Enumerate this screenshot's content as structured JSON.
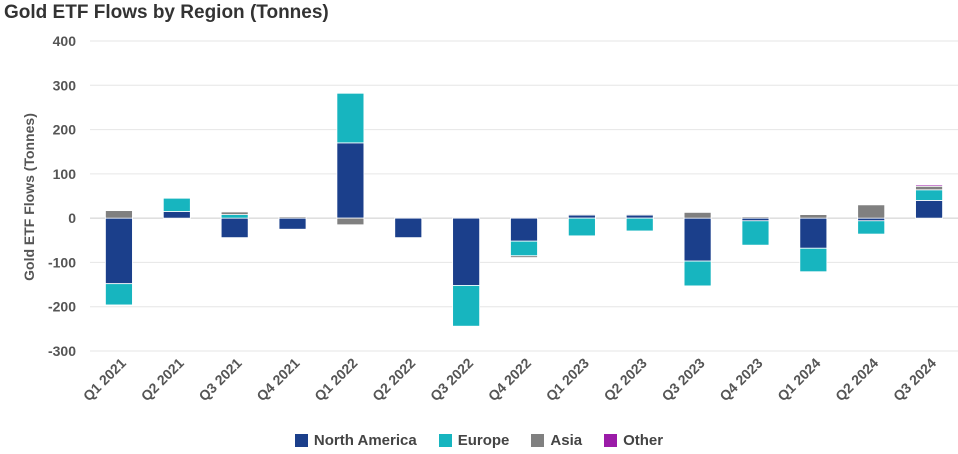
{
  "chart_data": {
    "type": "bar",
    "stacked": true,
    "title": "Gold ETF Flows by Region (Tonnes)",
    "xlabel": "",
    "ylabel": "Gold ETF Flows (Tonnes)",
    "ylim": [
      -300,
      400
    ],
    "yticks": [
      -300,
      -200,
      -100,
      0,
      100,
      200,
      300,
      400
    ],
    "grid": true,
    "legend_position": "bottom",
    "categories": [
      "Q1 2021",
      "Q2 2021",
      "Q3 2021",
      "Q4 2021",
      "Q1 2022",
      "Q2 2022",
      "Q3 2022",
      "Q4 2022",
      "Q1 2023",
      "Q2 2023",
      "Q3 2023",
      "Q4 2023",
      "Q1 2024",
      "Q2 2024",
      "Q3 2024"
    ],
    "series": [
      {
        "name": "North America",
        "color": "#1b3f8b",
        "values": [
          -148,
          15,
          -44,
          -25,
          170,
          -44,
          -152,
          -52,
          7,
          7,
          -97,
          -6,
          -68,
          -6,
          40
        ]
      },
      {
        "name": "Europe",
        "color": "#17b5bf",
        "values": [
          -48,
          30,
          8,
          0,
          112,
          0,
          -92,
          -33,
          -40,
          -29,
          -56,
          -55,
          -53,
          -30,
          24
        ]
      },
      {
        "name": "Asia",
        "color": "#808080",
        "values": [
          17,
          0,
          6,
          3,
          -15,
          0,
          0,
          -4,
          2,
          2,
          13,
          3,
          8,
          30,
          8
        ]
      },
      {
        "name": "Other",
        "color": "#9b1ba8",
        "values": [
          0,
          0,
          0,
          0,
          0,
          0,
          0,
          0,
          0,
          0,
          0,
          0,
          0,
          0,
          3
        ]
      }
    ]
  }
}
